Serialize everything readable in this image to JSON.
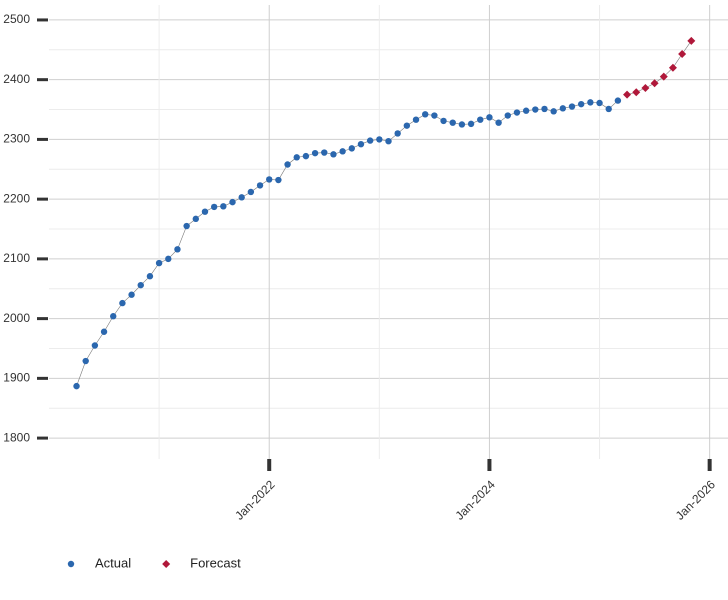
{
  "chart_data": {
    "type": "line",
    "series": [
      {
        "name": "Actual",
        "color": "#2b67ae",
        "marker": "circle",
        "x": [
          "2020-04",
          "2020-05",
          "2020-06",
          "2020-07",
          "2020-08",
          "2020-09",
          "2020-10",
          "2020-11",
          "2020-12",
          "2021-01",
          "2021-02",
          "2021-03",
          "2021-04",
          "2021-05",
          "2021-06",
          "2021-07",
          "2021-08",
          "2021-09",
          "2021-10",
          "2021-11",
          "2021-12",
          "2022-01",
          "2022-02",
          "2022-03",
          "2022-04",
          "2022-05",
          "2022-06",
          "2022-07",
          "2022-08",
          "2022-09",
          "2022-10",
          "2022-11",
          "2022-12",
          "2023-01",
          "2023-02",
          "2023-03",
          "2023-04",
          "2023-05",
          "2023-06",
          "2023-07",
          "2023-08",
          "2023-09",
          "2023-10",
          "2023-11",
          "2023-12",
          "2024-01",
          "2024-02",
          "2024-03",
          "2024-04",
          "2024-05",
          "2024-06",
          "2024-07",
          "2024-08",
          "2024-09",
          "2024-10",
          "2024-11",
          "2024-12",
          "2025-01",
          "2025-02",
          "2025-03"
        ],
        "values": [
          1887,
          1929,
          1955,
          1978,
          2004,
          2026,
          2040,
          2056,
          2071,
          2093,
          2100,
          2116,
          2155,
          2167,
          2179,
          2187,
          2188,
          2195,
          2203,
          2212,
          2223,
          2233,
          2232,
          2258,
          2270,
          2272,
          2277,
          2278,
          2275,
          2280,
          2285,
          2292,
          2298,
          2300,
          2297,
          2310,
          2323,
          2333,
          2342,
          2340,
          2331,
          2328,
          2325,
          2326,
          2333,
          2337,
          2328,
          2340,
          2345,
          2348,
          2350,
          2351,
          2347,
          2352,
          2355,
          2359,
          2362,
          2361,
          2351,
          2365
        ]
      },
      {
        "name": "Forecast",
        "color": "#b0183a",
        "marker": "diamond",
        "x": [
          "2025-04",
          "2025-05",
          "2025-06",
          "2025-07",
          "2025-08",
          "2025-09",
          "2025-10",
          "2025-11"
        ],
        "values": [
          2375,
          2379,
          2386,
          2394,
          2405,
          2420,
          2443,
          2465
        ]
      }
    ],
    "xlim": [
      "2020-01",
      "2026-03"
    ],
    "xticks": [
      {
        "value": "2022-01",
        "label": "Jan-2022"
      },
      {
        "value": "2024-01",
        "label": "Jan-2024"
      },
      {
        "value": "2026-01",
        "label": "Jan-2026"
      }
    ],
    "ylim": [
      1765,
      2525
    ],
    "yticks": [
      1800,
      1900,
      2000,
      2100,
      2200,
      2300,
      2400,
      2500
    ],
    "grid": true,
    "legend": "bottom-left"
  }
}
